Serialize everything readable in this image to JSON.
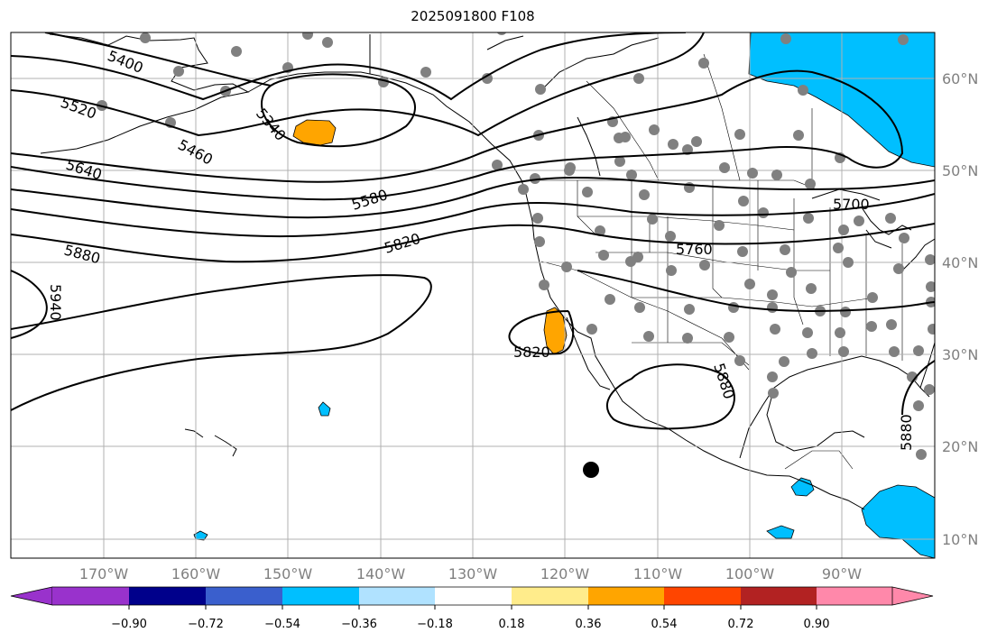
{
  "title": "2025091800 F108",
  "lon_labels": [
    "170°W",
    "160°W",
    "150°W",
    "140°W",
    "130°W",
    "120°W",
    "110°W",
    "100°W",
    "90°W"
  ],
  "lat_labels": [
    "60°N",
    "50°N",
    "40°N",
    "30°N",
    "20°N",
    "10°N"
  ],
  "contour_labels": [
    "5400",
    "5520",
    "5340",
    "5460",
    "5640",
    "5580",
    "5880",
    "5820",
    "5940",
    "5700",
    "5760",
    "5820",
    "5880",
    "5880"
  ],
  "colorbar": {
    "colors": [
      "#9932cc",
      "#00008b",
      "#3a5fcd",
      "#00bfff",
      "#b0e2ff",
      "#ffffff",
      "#ffec8b",
      "#ffa500",
      "#ff4500",
      "#b22222",
      "#ff88aa"
    ],
    "tick_labels": [
      "−0.90",
      "−0.72",
      "−0.54",
      "−0.36",
      "−0.18",
      "0.18",
      "0.36",
      "0.54",
      "0.72",
      "0.90"
    ]
  },
  "colors": {
    "positive_fill": "#ffa500",
    "negative_fill": "#00bfff",
    "station_dot": "#808080",
    "grid": "#b0b0b0"
  }
}
